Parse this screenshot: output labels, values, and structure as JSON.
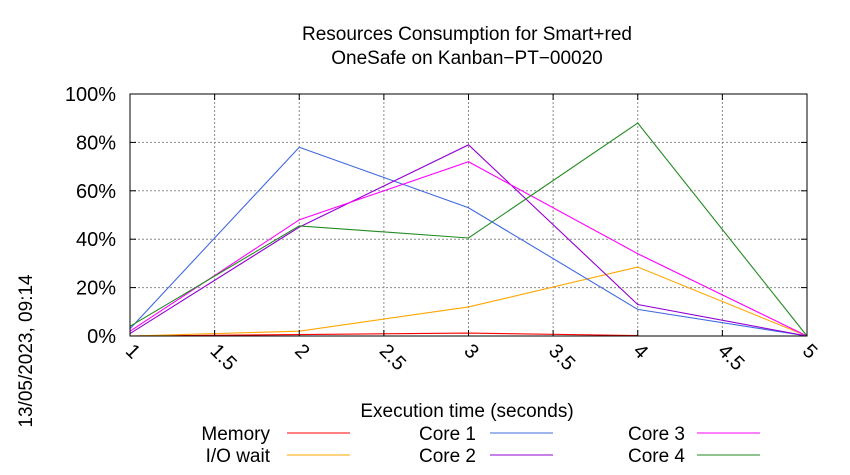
{
  "chart_data": {
    "type": "line",
    "title_lines": [
      "Resources Consumption for Smart+red",
      "OneSafe on Kanban−PT−00020"
    ],
    "xlabel": "Execution time (seconds)",
    "ylabel": "",
    "timestamp": "13/05/2023, 09:14",
    "xlim": [
      1,
      5
    ],
    "ylim": [
      0,
      100
    ],
    "x_ticks": [
      {
        "value": 1,
        "label": "1"
      },
      {
        "value": 1.5,
        "label": "1.5"
      },
      {
        "value": 2,
        "label": "2"
      },
      {
        "value": 2.5,
        "label": "2.5"
      },
      {
        "value": 3,
        "label": "3"
      },
      {
        "value": 3.5,
        "label": "3.5"
      },
      {
        "value": 4,
        "label": "4"
      },
      {
        "value": 4.5,
        "label": "4.5"
      },
      {
        "value": 5,
        "label": "5"
      }
    ],
    "y_ticks": [
      {
        "value": 0,
        "label": "0%"
      },
      {
        "value": 20,
        "label": "20%"
      },
      {
        "value": 40,
        "label": "40%"
      },
      {
        "value": 60,
        "label": "60%"
      },
      {
        "value": 80,
        "label": "80%"
      },
      {
        "value": 100,
        "label": "100%"
      }
    ],
    "grid": true,
    "legend_position": "bottom",
    "series": [
      {
        "name": "Memory",
        "color": "#ff0000",
        "x": [
          1,
          2,
          3,
          4
        ],
        "values": [
          0,
          0.6,
          1.2,
          0.2
        ]
      },
      {
        "name": "I/O wait",
        "color": "#ffa500",
        "x": [
          1,
          2,
          3,
          4,
          5
        ],
        "values": [
          0,
          2,
          12,
          28.5,
          0
        ]
      },
      {
        "name": "Core 1",
        "color": "#4169e1",
        "x": [
          1,
          2,
          3,
          4,
          5
        ],
        "values": [
          3,
          78,
          53,
          11,
          0
        ]
      },
      {
        "name": "Core 2",
        "color": "#9400d3",
        "x": [
          1,
          2,
          3,
          4,
          5
        ],
        "values": [
          1,
          45,
          79,
          13,
          0
        ]
      },
      {
        "name": "Core 3",
        "color": "#ff00ff",
        "x": [
          1,
          2,
          3,
          4,
          5
        ],
        "values": [
          2,
          48,
          72,
          34,
          0
        ]
      },
      {
        "name": "Core 4",
        "color": "#228b22",
        "x": [
          1,
          2,
          3,
          4,
          5
        ],
        "values": [
          4,
          45.5,
          40.5,
          88,
          0
        ]
      }
    ]
  }
}
